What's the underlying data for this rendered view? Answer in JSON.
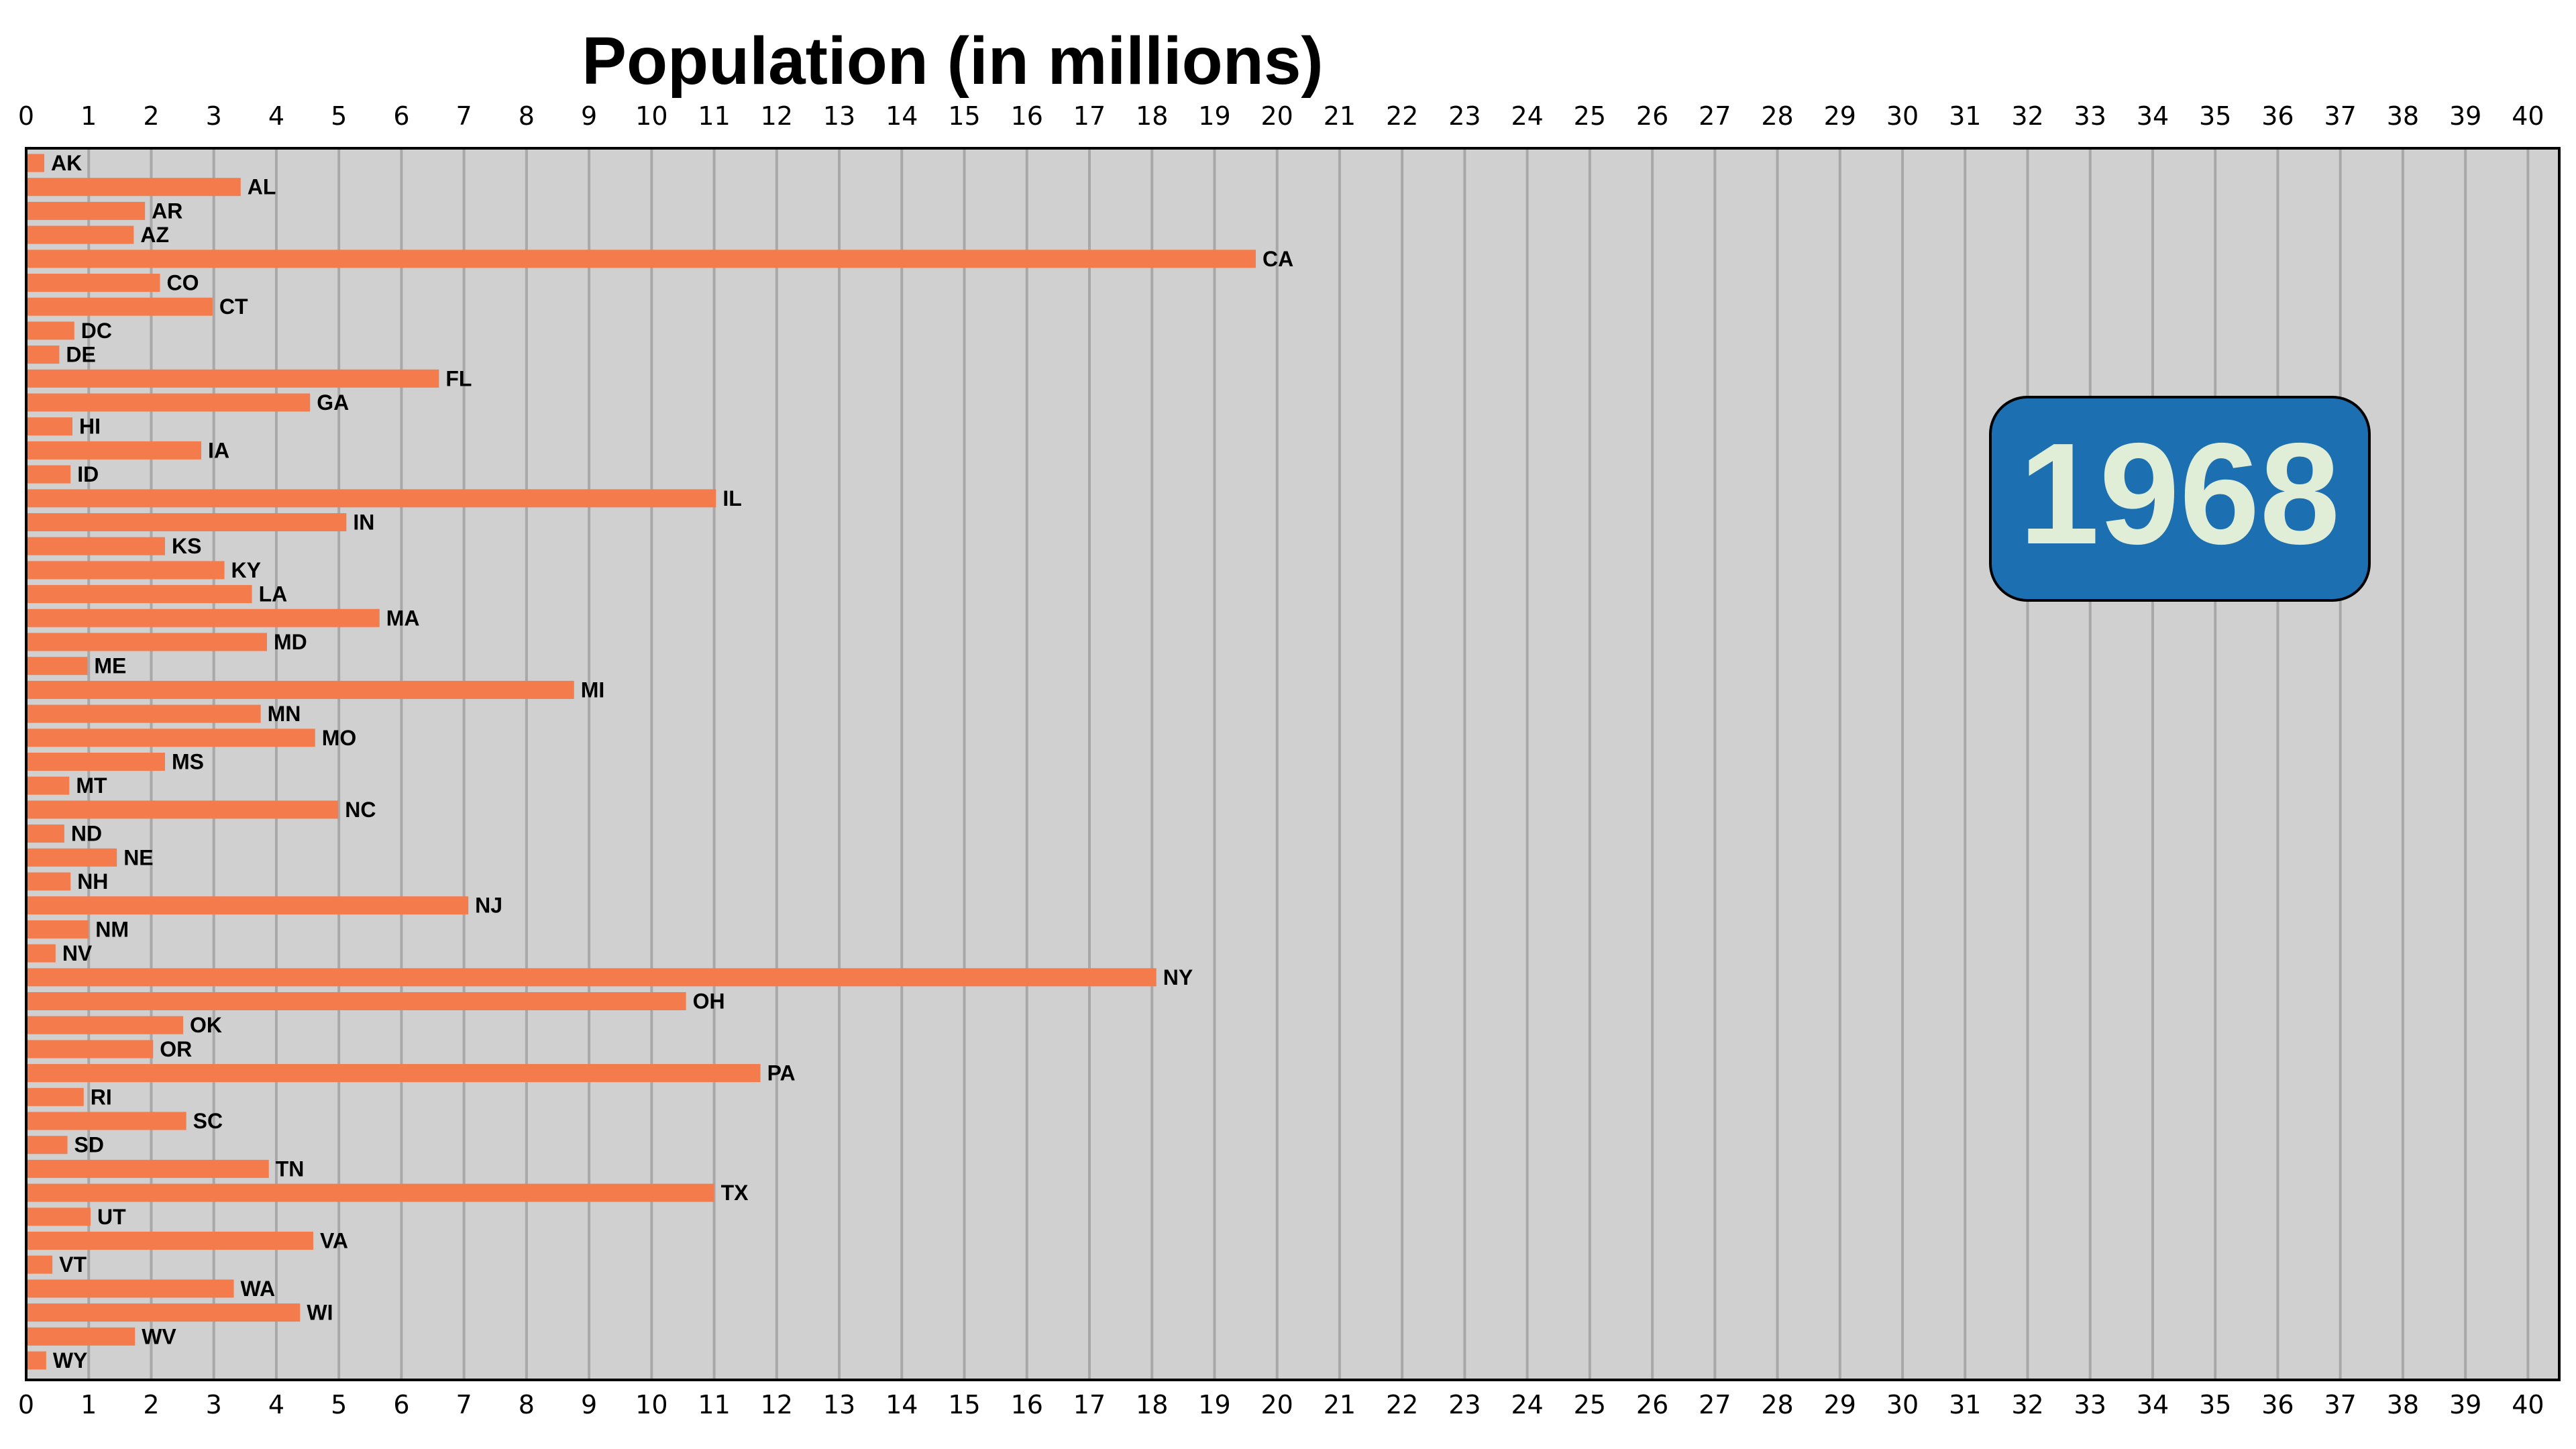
{
  "chart_data": {
    "type": "bar",
    "orientation": "horizontal",
    "title": "Population (in millions)",
    "annotation": "1968",
    "xlim": [
      0,
      40.5
    ],
    "xticks": [
      0,
      1,
      2,
      3,
      4,
      5,
      6,
      7,
      8,
      9,
      10,
      11,
      12,
      13,
      14,
      15,
      16,
      17,
      18,
      19,
      20,
      21,
      22,
      23,
      24,
      25,
      26,
      27,
      28,
      29,
      30,
      31,
      32,
      33,
      34,
      35,
      36,
      37,
      38,
      39,
      40
    ],
    "xtick_position": "top-and-bottom",
    "grid": true,
    "categories": [
      "AK",
      "AL",
      "AR",
      "AZ",
      "CA",
      "CO",
      "CT",
      "DC",
      "DE",
      "FL",
      "GA",
      "HI",
      "IA",
      "ID",
      "IL",
      "IN",
      "KS",
      "KY",
      "LA",
      "MA",
      "MD",
      "ME",
      "MI",
      "MN",
      "MO",
      "MS",
      "MT",
      "NC",
      "ND",
      "NE",
      "NH",
      "NJ",
      "NM",
      "NV",
      "NY",
      "OH",
      "OK",
      "OR",
      "PA",
      "RI",
      "SC",
      "SD",
      "TN",
      "TX",
      "UT",
      "VA",
      "VT",
      "WA",
      "WI",
      "WV",
      "WY"
    ],
    "values": [
      0.29,
      3.43,
      1.9,
      1.72,
      19.66,
      2.14,
      2.98,
      0.77,
      0.53,
      6.6,
      4.54,
      0.74,
      2.8,
      0.71,
      11.03,
      5.12,
      2.22,
      3.17,
      3.61,
      5.65,
      3.85,
      0.98,
      8.76,
      3.75,
      4.62,
      2.22,
      0.69,
      4.99,
      0.61,
      1.45,
      0.71,
      7.07,
      1.0,
      0.47,
      18.07,
      10.55,
      2.51,
      2.03,
      11.74,
      0.92,
      2.56,
      0.66,
      3.88,
      11.0,
      1.03,
      4.59,
      0.42,
      3.32,
      4.38,
      1.74,
      0.32
    ],
    "colors": {
      "bar": "#f47c4c",
      "plot_background": "#d0d0d0",
      "grid": "#a8a8a8",
      "year_box": "#1c6fb0",
      "year_text": "#e0eed8"
    }
  }
}
